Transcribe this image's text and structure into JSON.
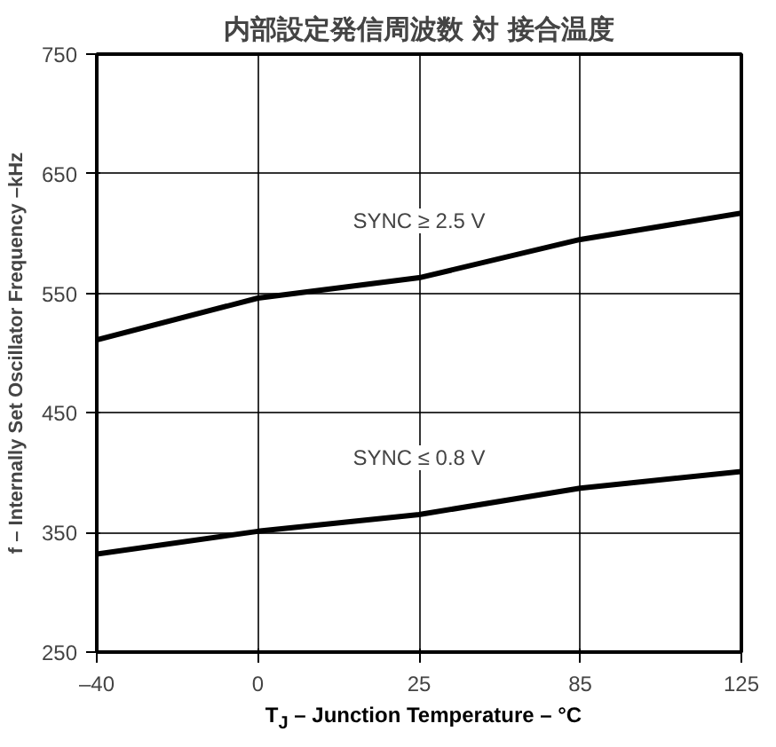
{
  "chart_data": {
    "type": "line",
    "title": "内部設定発信周波数 対 接合温度",
    "xlabel": "T$_{J}$ – Junction Temperature – °C",
    "ylabel": "f – Internally Set Oscillator Frequency –kHz",
    "categories": [
      "–40",
      "0",
      "25",
      "85",
      "125"
    ],
    "series": [
      {
        "color": "#000000",
        "values": [
          511,
          546,
          563,
          595,
          617
        ]
      },
      {
        "color": "#000000",
        "values": [
          332,
          351,
          365,
          387,
          401
        ]
      }
    ],
    "annotations": [
      "SYNC ≥ 2.5 V",
      "SYNC ≤ 0.8 V"
    ],
    "ylim": [
      250,
      750
    ],
    "yticks": [
      250,
      350,
      450,
      550,
      650,
      750
    ],
    "grid": true,
    "marker": "none",
    "line_style": "solid"
  }
}
